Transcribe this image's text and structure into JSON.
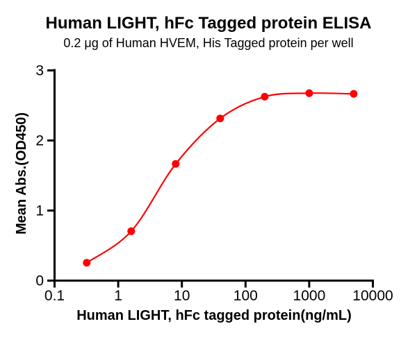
{
  "chart_data": {
    "type": "scatter",
    "subtype": "line+scatter dose-response",
    "title": "Human LIGHT, hFc Tagged protein ELISA",
    "subtitle": "0.2 μg of Human HVEM, His Tagged protein per well",
    "xlabel": "Human LIGHT, hFc tagged protein(ng/mL)",
    "ylabel": "Mean Abs.(OD450)",
    "x_scale": "log10",
    "xlim": [
      0.1,
      10000
    ],
    "ylim": [
      0,
      3
    ],
    "x_ticks": [
      0.1,
      1,
      10,
      100,
      1000,
      10000
    ],
    "x_tick_labels": [
      "0.1",
      "1",
      "10",
      "100",
      "1000",
      "10000"
    ],
    "y_ticks": [
      0,
      1,
      2,
      3
    ],
    "y_tick_labels": [
      "0",
      "1",
      "2",
      "3"
    ],
    "grid": false,
    "legend": "none",
    "series": [
      {
        "x": [
          0.32,
          1.6,
          8,
          40,
          200,
          1000,
          5000
        ],
        "y": [
          0.25,
          0.7,
          1.66,
          2.31,
          2.62,
          2.67,
          2.66
        ],
        "marker": "circle",
        "line_style": "smooth",
        "color": "#FF0000"
      }
    ],
    "axis_color": "#000000",
    "text_color": "#000000",
    "background": "#FFFFFF"
  }
}
